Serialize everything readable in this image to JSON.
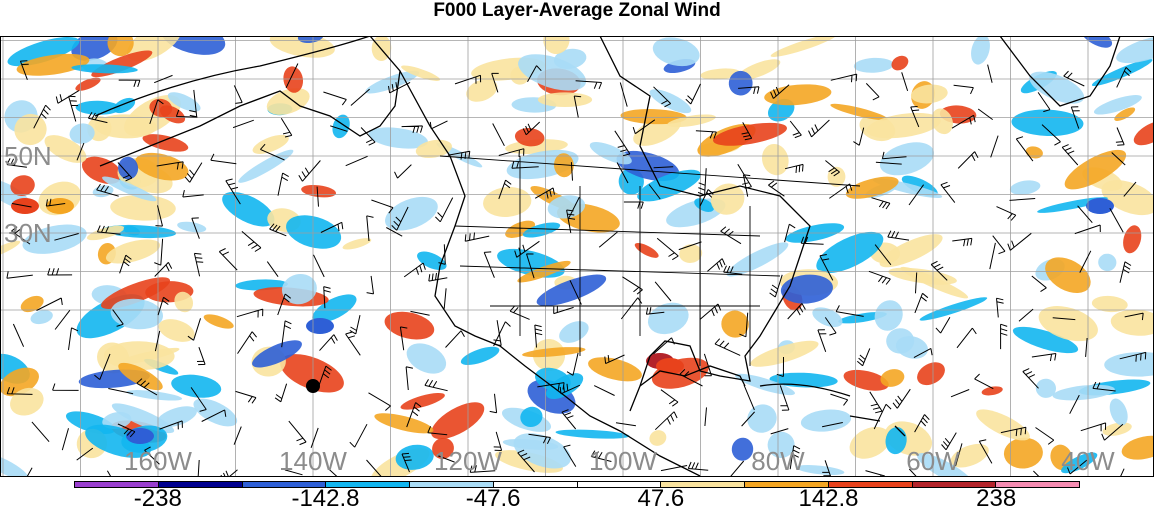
{
  "title": "F000 Layer-Average Zonal Wind",
  "map": {
    "projection": "cylindrical equidistant",
    "lat_labels": [
      {
        "lat": 50,
        "text": "50N"
      },
      {
        "lat": 30,
        "text": "30N"
      }
    ],
    "lon_labels": [
      {
        "lon": -160,
        "text": "160W"
      },
      {
        "lon": -140,
        "text": "140W"
      },
      {
        "lon": -120,
        "text": "120W"
      },
      {
        "lon": -100,
        "text": "100W"
      },
      {
        "lon": -80,
        "text": "80W"
      },
      {
        "lon": -60,
        "text": "60W"
      },
      {
        "lon": -40,
        "text": "40W"
      }
    ],
    "grid_color": "#9e9e9e",
    "label_color": "#8c8c8c",
    "overlays": [
      "coastlines",
      "political boundaries",
      "wind barbs",
      "filled contours"
    ],
    "marker": {
      "type": "black dot"
    }
  },
  "colorbar": {
    "colors": [
      "#9a3fcf",
      "#00008f",
      "#2e5fd6",
      "#12b6f0",
      "#a9dcf6",
      "#ffffff",
      "#ffffff",
      "#fae39f",
      "#f4a623",
      "#e8421c",
      "#b3242b",
      "#f58cb2"
    ],
    "labels": [
      {
        "index": 1,
        "text": "-238"
      },
      {
        "index": 3,
        "text": "-142.8"
      },
      {
        "index": 5,
        "text": "-47.6"
      },
      {
        "index": 7,
        "text": "47.6"
      },
      {
        "index": 9,
        "text": "142.8"
      },
      {
        "index": 11,
        "text": "238"
      }
    ]
  }
}
